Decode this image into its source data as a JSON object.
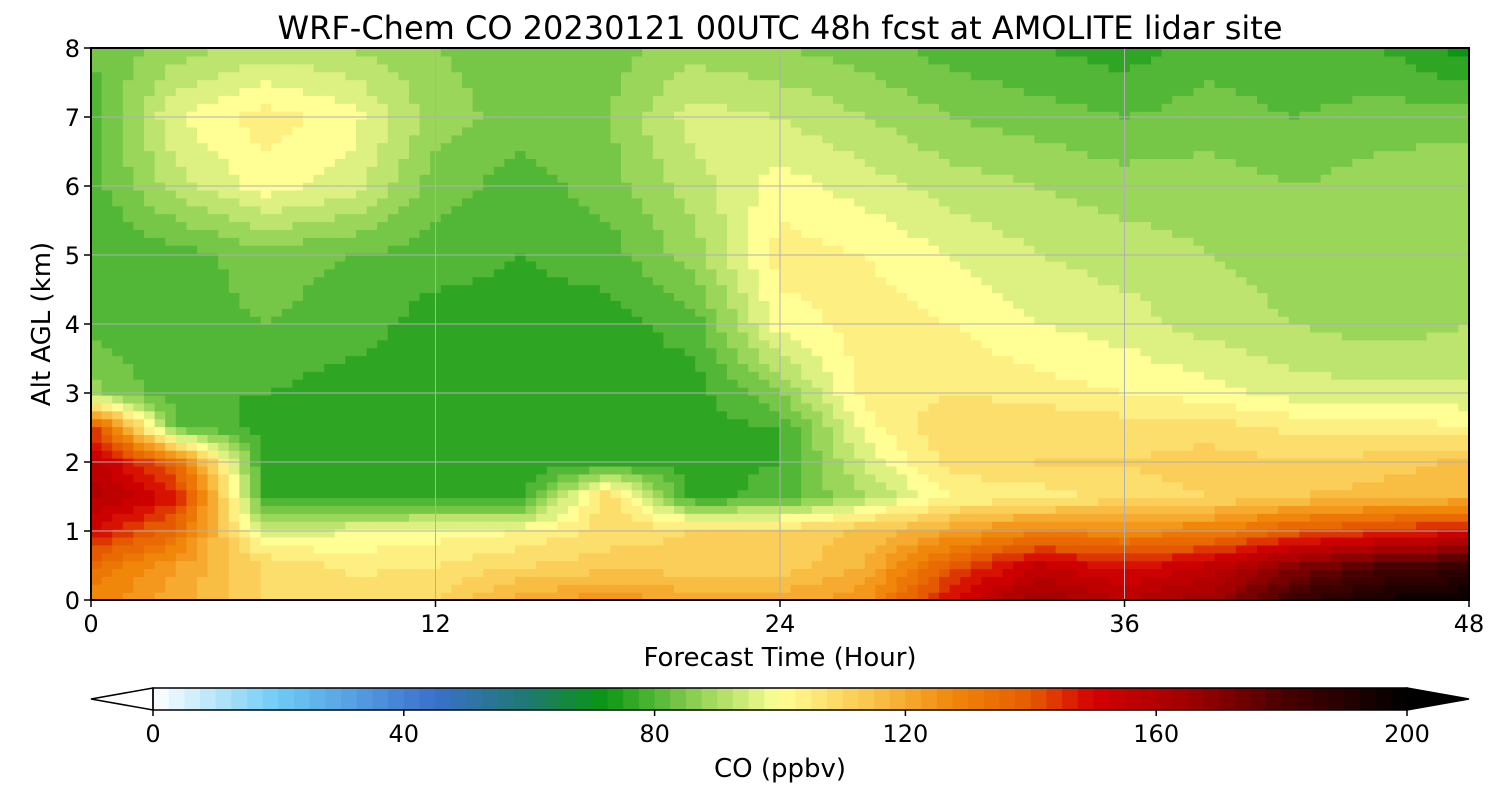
{
  "chart_data": {
    "type": "heatmap",
    "title": "WRF-Chem CO  20230121 00UTC 48h fcst at AMOLITE lidar site",
    "xlabel": "Forecast Time (Hour)",
    "ylabel": "Alt AGL (km)",
    "xlim": [
      0,
      48
    ],
    "ylim": [
      0,
      8
    ],
    "x_ticks": [
      "0",
      "12",
      "24",
      "36",
      "48"
    ],
    "y_ticks": [
      "0",
      "1",
      "2",
      "3",
      "4",
      "5",
      "6",
      "7",
      "8"
    ],
    "grid": true,
    "colorbar": {
      "label": "CO  (ppbv)",
      "range": [
        0,
        200
      ],
      "ticks": [
        "0",
        "40",
        "80",
        "120",
        "160",
        "200"
      ],
      "extend": "both",
      "stops": [
        {
          "value": 0,
          "color": "#ffffff"
        },
        {
          "value": 20,
          "color": "#6ecbf5"
        },
        {
          "value": 45,
          "color": "#3a6fcc"
        },
        {
          "value": 60,
          "color": "#1e7a6e"
        },
        {
          "value": 72,
          "color": "#0a9612"
        },
        {
          "value": 88,
          "color": "#9ad65a"
        },
        {
          "value": 100,
          "color": "#ffff96"
        },
        {
          "value": 115,
          "color": "#f9c248"
        },
        {
          "value": 128,
          "color": "#f0860a"
        },
        {
          "value": 140,
          "color": "#e55a00"
        },
        {
          "value": 150,
          "color": "#d40000"
        },
        {
          "value": 165,
          "color": "#a00000"
        },
        {
          "value": 180,
          "color": "#4a0000"
        },
        {
          "value": 200,
          "color": "#000000"
        }
      ]
    },
    "x_grid": [
      0,
      3,
      6,
      9,
      12,
      15,
      18,
      21,
      24,
      27,
      30,
      33,
      36,
      39,
      42,
      45,
      48
    ],
    "y_grid": [
      0,
      0.5,
      1,
      1.5,
      2,
      2.5,
      3,
      4,
      5,
      6,
      7,
      8
    ],
    "z": [
      [
        128,
        120,
        110,
        108,
        110,
        120,
        125,
        120,
        120,
        125,
        150,
        165,
        158,
        165,
        185,
        195,
        200
      ],
      [
        135,
        122,
        110,
        105,
        106,
        110,
        112,
        112,
        112,
        118,
        140,
        155,
        148,
        155,
        170,
        180,
        185
      ],
      [
        150,
        135,
        95,
        98,
        100,
        102,
        108,
        110,
        110,
        115,
        122,
        130,
        128,
        130,
        140,
        145,
        150
      ],
      [
        160,
        148,
        78,
        76,
        76,
        76,
        110,
        76,
        80,
        90,
        102,
        104,
        108,
        110,
        114,
        116,
        118
      ],
      [
        158,
        135,
        76,
        76,
        76,
        76,
        76,
        76,
        78,
        95,
        108,
        110,
        110,
        112,
        110,
        112,
        115
      ],
      [
        145,
        82,
        76,
        76,
        76,
        76,
        76,
        76,
        78,
        100,
        110,
        110,
        108,
        108,
        105,
        105,
        102
      ],
      [
        88,
        78,
        78,
        76,
        76,
        76,
        76,
        76,
        86,
        104,
        106,
        104,
        102,
        100,
        96,
        95,
        95
      ],
      [
        80,
        80,
        82,
        80,
        76,
        76,
        76,
        80,
        100,
        104,
        102,
        98,
        96,
        92,
        90,
        88,
        90
      ],
      [
        78,
        80,
        84,
        82,
        80,
        78,
        80,
        88,
        104,
        102,
        98,
        94,
        92,
        90,
        88,
        88,
        90
      ],
      [
        80,
        92,
        100,
        96,
        84,
        80,
        84,
        92,
        100,
        96,
        92,
        90,
        88,
        88,
        86,
        88,
        90
      ],
      [
        80,
        98,
        104,
        100,
        88,
        84,
        86,
        96,
        94,
        90,
        86,
        84,
        82,
        84,
        82,
        84,
        84
      ],
      [
        82,
        88,
        92,
        90,
        86,
        84,
        84,
        88,
        86,
        84,
        80,
        78,
        76,
        80,
        78,
        78,
        72
      ]
    ]
  }
}
